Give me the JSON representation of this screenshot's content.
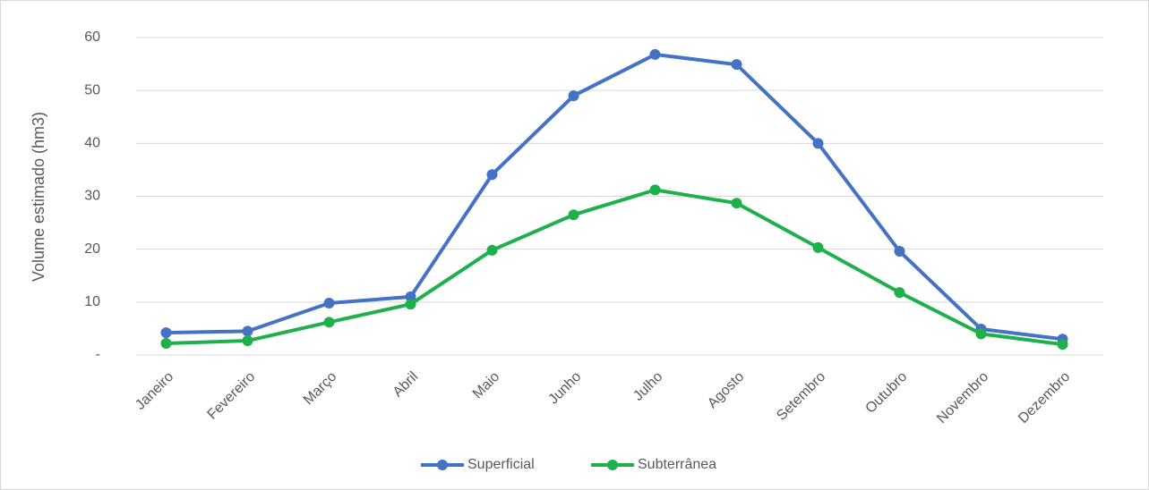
{
  "chart_data": {
    "type": "line",
    "y_label": "Volume estimado (hm3)",
    "categories": [
      "Janeiro",
      "Fevereiro",
      "Março",
      "Abril",
      "Maio",
      "Junho",
      "Julho",
      "Agosto",
      "Setembro",
      "Outubro",
      "Novembro",
      "Dezembro"
    ],
    "series": [
      {
        "name": "Superficial",
        "color": "#4472c4",
        "values": [
          4.2,
          4.5,
          9.8,
          11,
          34.1,
          49,
          56.8,
          54.9,
          40,
          19.6,
          4.9,
          3.0
        ]
      },
      {
        "name": "Subterrânea",
        "color": "#1fb04c",
        "values": [
          2.2,
          2.7,
          6.2,
          9.6,
          19.8,
          26.5,
          31.2,
          28.7,
          20.3,
          11.8,
          4.0,
          2.0
        ]
      }
    ],
    "ylim": [
      0,
      60
    ],
    "yticks": [
      {
        "value": 0,
        "label": "-"
      },
      10,
      20,
      30,
      40,
      50,
      60
    ],
    "grid": true,
    "legend": "bottom"
  }
}
